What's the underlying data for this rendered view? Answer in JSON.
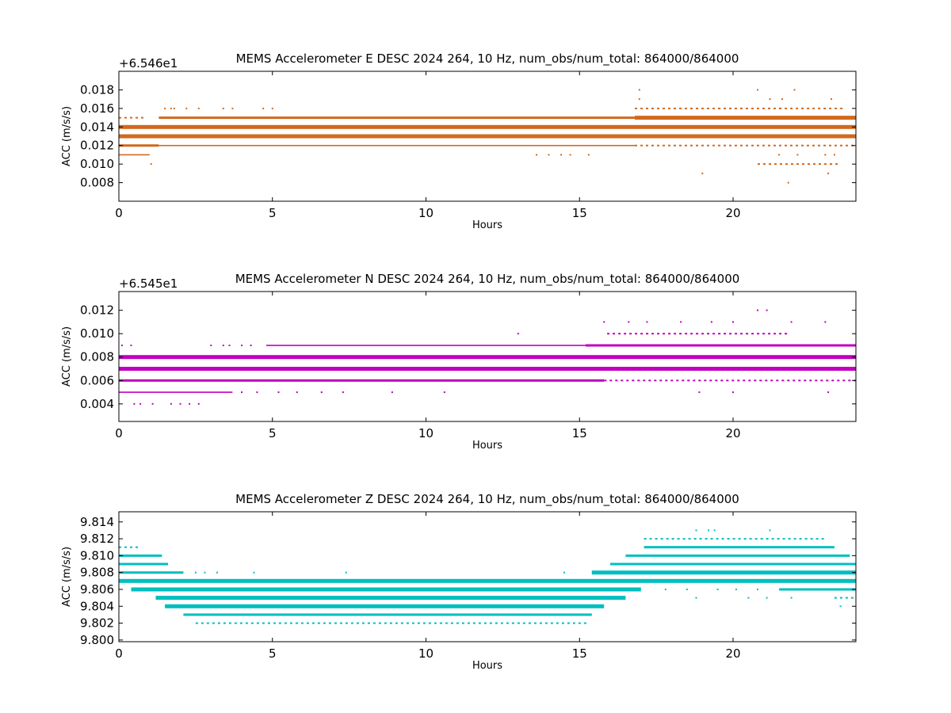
{
  "chart_data": [
    {
      "type": "scatter",
      "title": "MEMS Accelerometer E DESC 2024 264, 10 Hz, num_obs/num_total: 864000/864000",
      "xlabel": "Hours",
      "ylabel": "ACC (m/s/s)",
      "offset_text": "+6.546e1",
      "color": "#d2691e",
      "xlim": [
        0,
        24
      ],
      "ylim": [
        0.006,
        0.02
      ],
      "xticks": [
        0,
        5,
        10,
        15,
        20
      ],
      "xtick_labels": [
        "0",
        "5",
        "10",
        "15",
        "20"
      ],
      "yticks": [
        0.008,
        0.01,
        0.012,
        0.014,
        0.016,
        0.018
      ],
      "ytick_labels": [
        "0.008",
        "0.010",
        "0.012",
        "0.014",
        "0.016",
        "0.018"
      ],
      "grid": false,
      "series": [
        {
          "y": 0.015,
          "segments": [
            [
              0,
              0.8,
              "dot"
            ],
            [
              1.3,
              16.8,
              "mid"
            ],
            [
              16.8,
              24,
              "thick"
            ]
          ]
        },
        {
          "y": 0.014,
          "segments": [
            [
              0,
              24,
              "thick"
            ]
          ]
        },
        {
          "y": 0.013,
          "segments": [
            [
              0,
              24,
              "thick"
            ]
          ]
        },
        {
          "y": 0.012,
          "segments": [
            [
              0,
              1.3,
              "mid"
            ],
            [
              1.3,
              16.8,
              "thin"
            ],
            [
              16.8,
              24,
              "dot"
            ]
          ]
        },
        {
          "y": 0.011,
          "segments": [
            [
              0,
              1.0,
              "thin"
            ]
          ]
        },
        {
          "y": 0.016,
          "segments": [
            [
              16.8,
              21.5,
              "dot"
            ],
            [
              21.5,
              23.5,
              "dot"
            ]
          ]
        },
        {
          "y": 0.01,
          "segments": [
            [
              20.8,
              23.4,
              "dot"
            ]
          ]
        }
      ],
      "points": [
        [
          1.5,
          0.016
        ],
        [
          1.7,
          0.016
        ],
        [
          1.8,
          0.016
        ],
        [
          2.2,
          0.016
        ],
        [
          2.6,
          0.016
        ],
        [
          3.4,
          0.016
        ],
        [
          3.7,
          0.016
        ],
        [
          4.7,
          0.016
        ],
        [
          5.0,
          0.016
        ],
        [
          1.05,
          0.01
        ],
        [
          13.6,
          0.011
        ],
        [
          14.0,
          0.011
        ],
        [
          14.4,
          0.011
        ],
        [
          14.7,
          0.011
        ],
        [
          15.3,
          0.011
        ],
        [
          16.95,
          0.017
        ],
        [
          16.95,
          0.018
        ],
        [
          19.0,
          0.009
        ],
        [
          21.8,
          0.008
        ],
        [
          23.1,
          0.009
        ],
        [
          20.8,
          0.018
        ],
        [
          21.2,
          0.017
        ],
        [
          21.6,
          0.017
        ],
        [
          22.0,
          0.018
        ],
        [
          23.2,
          0.017
        ],
        [
          21.5,
          0.011
        ],
        [
          22.1,
          0.011
        ],
        [
          23.0,
          0.011
        ],
        [
          23.3,
          0.011
        ]
      ]
    },
    {
      "type": "scatter",
      "title": "MEMS Accelerometer N DESC 2024 264, 10 Hz, num_obs/num_total: 864000/864000",
      "xlabel": "Hours",
      "ylabel": "ACC (m/s/s)",
      "offset_text": "+6.545e1",
      "color": "#bf00bf",
      "xlim": [
        0,
        24
      ],
      "ylim": [
        0.0025,
        0.0136
      ],
      "xticks": [
        0,
        5,
        10,
        15,
        20
      ],
      "xtick_labels": [
        "0",
        "5",
        "10",
        "15",
        "20"
      ],
      "yticks": [
        0.004,
        0.006,
        0.008,
        0.01,
        0.012
      ],
      "ytick_labels": [
        "0.004",
        "0.006",
        "0.008",
        "0.010",
        "0.012"
      ],
      "grid": false,
      "series": [
        {
          "y": 0.009,
          "segments": [
            [
              4.8,
              15.2,
              "thin"
            ],
            [
              15.2,
              24,
              "mid"
            ]
          ]
        },
        {
          "y": 0.008,
          "segments": [
            [
              0,
              24,
              "thick"
            ]
          ]
        },
        {
          "y": 0.007,
          "segments": [
            [
              0,
              24,
              "thick"
            ]
          ]
        },
        {
          "y": 0.006,
          "segments": [
            [
              0,
              15.8,
              "mid"
            ],
            [
              15.8,
              24,
              "dot"
            ]
          ]
        },
        {
          "y": 0.005,
          "segments": [
            [
              0,
              3.7,
              "thin"
            ]
          ]
        },
        {
          "y": 0.01,
          "segments": [
            [
              15.9,
              21.8,
              "dot"
            ]
          ]
        }
      ],
      "points": [
        [
          0.1,
          0.009
        ],
        [
          0.4,
          0.009
        ],
        [
          3.0,
          0.009
        ],
        [
          3.4,
          0.009
        ],
        [
          3.6,
          0.009
        ],
        [
          4.0,
          0.009
        ],
        [
          4.3,
          0.009
        ],
        [
          0.5,
          0.004
        ],
        [
          0.7,
          0.004
        ],
        [
          1.1,
          0.004
        ],
        [
          1.7,
          0.004
        ],
        [
          2.0,
          0.004
        ],
        [
          2.3,
          0.004
        ],
        [
          2.6,
          0.004
        ],
        [
          4.0,
          0.005
        ],
        [
          4.5,
          0.005
        ],
        [
          5.2,
          0.005
        ],
        [
          5.8,
          0.005
        ],
        [
          6.6,
          0.005
        ],
        [
          7.3,
          0.005
        ],
        [
          8.9,
          0.005
        ],
        [
          10.6,
          0.005
        ],
        [
          13.0,
          0.01
        ],
        [
          15.8,
          0.011
        ],
        [
          16.6,
          0.011
        ],
        [
          17.2,
          0.011
        ],
        [
          18.3,
          0.011
        ],
        [
          19.3,
          0.011
        ],
        [
          20.0,
          0.011
        ],
        [
          21.9,
          0.011
        ],
        [
          23.0,
          0.011
        ],
        [
          20.8,
          0.012
        ],
        [
          21.1,
          0.012
        ],
        [
          18.9,
          0.005
        ],
        [
          20.0,
          0.005
        ],
        [
          23.1,
          0.005
        ]
      ]
    },
    {
      "type": "scatter",
      "title": "MEMS Accelerometer Z DESC 2024 264, 10 Hz, num_obs/num_total: 864000/864000",
      "xlabel": "Hours",
      "ylabel": "ACC (m/s/s)",
      "offset_text": "",
      "color": "#00bfbf",
      "xlim": [
        0,
        24
      ],
      "ylim": [
        9.7998,
        9.8152
      ],
      "xticks": [
        0,
        5,
        10,
        15,
        20
      ],
      "xtick_labels": [
        "0",
        "5",
        "10",
        "15",
        "20"
      ],
      "yticks": [
        9.8,
        9.802,
        9.804,
        9.806,
        9.808,
        9.81,
        9.812,
        9.814
      ],
      "ytick_labels": [
        "9.800",
        "9.802",
        "9.804",
        "9.806",
        "9.808",
        "9.810",
        "9.812",
        "9.814"
      ],
      "grid": false,
      "series": [
        {
          "y": 9.812,
          "segments": [
            [
              17.1,
              23.0,
              "dot"
            ]
          ]
        },
        {
          "y": 9.811,
          "segments": [
            [
              0,
              0.6,
              "dot"
            ],
            [
              17.1,
              23.3,
              "mid"
            ]
          ]
        },
        {
          "y": 9.81,
          "segments": [
            [
              0,
              1.4,
              "mid"
            ],
            [
              16.5,
              23.8,
              "mid"
            ]
          ]
        },
        {
          "y": 9.809,
          "segments": [
            [
              0,
              1.6,
              "mid"
            ],
            [
              16.0,
              24,
              "mid"
            ]
          ]
        },
        {
          "y": 9.808,
          "segments": [
            [
              0,
              2.1,
              "mid"
            ],
            [
              15.4,
              24,
              "thick"
            ]
          ]
        },
        {
          "y": 9.807,
          "segments": [
            [
              0,
              24,
              "thick"
            ]
          ]
        },
        {
          "y": 9.806,
          "segments": [
            [
              0.4,
              17.0,
              "thick"
            ],
            [
              21.5,
              24,
              "mid"
            ]
          ]
        },
        {
          "y": 9.805,
          "segments": [
            [
              1.2,
              16.5,
              "thick"
            ],
            [
              23.3,
              24,
              "dot"
            ]
          ]
        },
        {
          "y": 9.804,
          "segments": [
            [
              1.5,
              15.8,
              "thick"
            ]
          ]
        },
        {
          "y": 9.803,
          "segments": [
            [
              2.1,
              15.4,
              "mid"
            ]
          ]
        },
        {
          "y": 9.802,
          "segments": [
            [
              2.5,
              15.2,
              "dot"
            ]
          ]
        }
      ],
      "points": [
        [
          18.8,
          9.813
        ],
        [
          19.2,
          9.813
        ],
        [
          19.4,
          9.813
        ],
        [
          21.2,
          9.813
        ],
        [
          2.5,
          9.808
        ],
        [
          2.8,
          9.808
        ],
        [
          3.2,
          9.808
        ],
        [
          4.4,
          9.808
        ],
        [
          7.4,
          9.808
        ],
        [
          14.5,
          9.808
        ],
        [
          17.8,
          9.806
        ],
        [
          18.5,
          9.806
        ],
        [
          19.5,
          9.806
        ],
        [
          20.1,
          9.806
        ],
        [
          20.8,
          9.806
        ],
        [
          18.8,
          9.805
        ],
        [
          20.5,
          9.805
        ],
        [
          21.1,
          9.805
        ],
        [
          21.9,
          9.805
        ],
        [
          23.5,
          9.804
        ],
        [
          15.6,
          9.804
        ]
      ]
    }
  ]
}
